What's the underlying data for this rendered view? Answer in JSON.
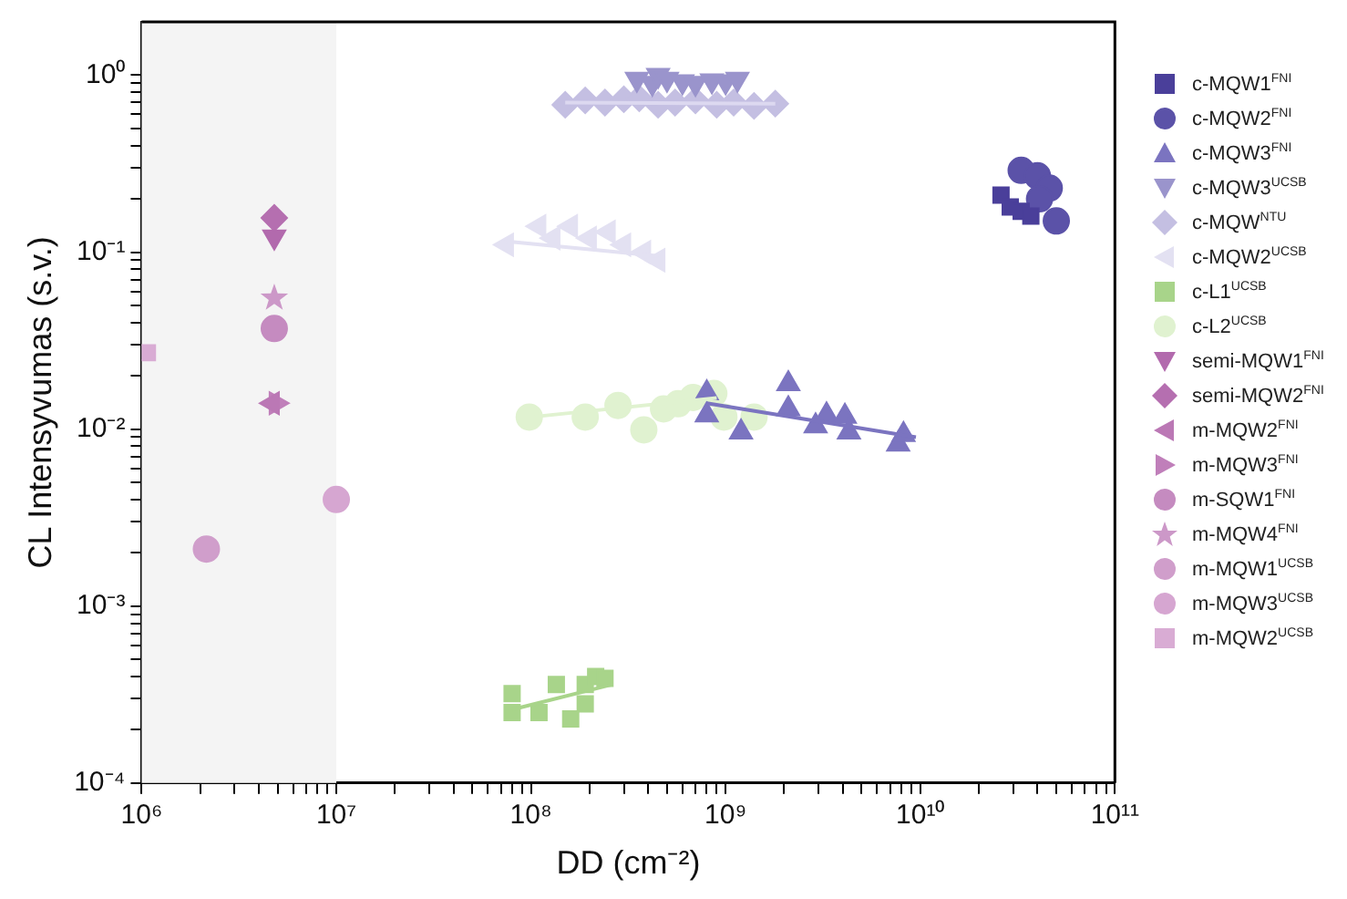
{
  "chart_data": {
    "type": "scatter",
    "xlabel": "DD (cm⁻²)",
    "ylabel": "CL Intensyvumas (s.v.)",
    "log": "xy",
    "grid": false,
    "legend": "right",
    "xlim": [
      1000000,
      100000000000
    ],
    "xticks": [
      {
        "value": 1000000,
        "label": "10⁶"
      },
      {
        "value": 2000000,
        "label": null
      },
      {
        "value": 3000000,
        "label": null
      },
      {
        "value": 4000000,
        "label": null
      },
      {
        "value": 5000000,
        "label": null
      },
      {
        "value": 6000000,
        "label": null
      },
      {
        "value": 7000000,
        "label": null
      },
      {
        "value": 8000000,
        "label": null
      },
      {
        "value": 9000000,
        "label": null
      },
      {
        "value": 10000000,
        "label": "10⁷"
      },
      {
        "value": 20000000,
        "label": null
      },
      {
        "value": 30000000,
        "label": null
      },
      {
        "value": 40000000,
        "label": null
      },
      {
        "value": 50000000,
        "label": null
      },
      {
        "value": 60000000,
        "label": null
      },
      {
        "value": 70000000,
        "label": null
      },
      {
        "value": 80000000,
        "label": null
      },
      {
        "value": 90000000,
        "label": null
      },
      {
        "value": 100000000,
        "label": "10⁸"
      },
      {
        "value": 200000000,
        "label": null
      },
      {
        "value": 300000000,
        "label": null
      },
      {
        "value": 400000000,
        "label": null
      },
      {
        "value": 500000000,
        "label": null
      },
      {
        "value": 600000000,
        "label": null
      },
      {
        "value": 700000000,
        "label": null
      },
      {
        "value": 800000000,
        "label": null
      },
      {
        "value": 900000000,
        "label": null
      },
      {
        "value": 1000000000,
        "label": "10⁹"
      },
      {
        "value": 2000000000,
        "label": null
      },
      {
        "value": 3000000000,
        "label": null
      },
      {
        "value": 4000000000,
        "label": null
      },
      {
        "value": 5000000000,
        "label": null
      },
      {
        "value": 6000000000,
        "label": null
      },
      {
        "value": 7000000000,
        "label": null
      },
      {
        "value": 8000000000,
        "label": null
      },
      {
        "value": 9000000000,
        "label": null
      },
      {
        "value": 10000000000,
        "label": "10¹⁰"
      },
      {
        "value": 20000000000,
        "label": null
      },
      {
        "value": 30000000000,
        "label": null
      },
      {
        "value": 40000000000,
        "label": null
      },
      {
        "value": 50000000000,
        "label": null
      },
      {
        "value": 60000000000,
        "label": null
      },
      {
        "value": 70000000000,
        "label": null
      },
      {
        "value": 80000000000,
        "label": null
      },
      {
        "value": 90000000000,
        "label": null
      },
      {
        "value": 100000000000,
        "label": "10¹¹"
      }
    ],
    "ylim": [
      0.0001,
      2
    ],
    "yticks": [
      {
        "value": 0.0001,
        "label": "10⁻⁴"
      },
      {
        "value": 0.0002,
        "label": null
      },
      {
        "value": 0.0003,
        "label": null
      },
      {
        "value": 0.0004,
        "label": null
      },
      {
        "value": 0.0005,
        "label": null
      },
      {
        "value": 0.0006,
        "label": null
      },
      {
        "value": 0.0007,
        "label": null
      },
      {
        "value": 0.0008,
        "label": null
      },
      {
        "value": 0.0009,
        "label": null
      },
      {
        "value": 0.001,
        "label": "10⁻³"
      },
      {
        "value": 0.002,
        "label": null
      },
      {
        "value": 0.003,
        "label": null
      },
      {
        "value": 0.004,
        "label": null
      },
      {
        "value": 0.005,
        "label": null
      },
      {
        "value": 0.006,
        "label": null
      },
      {
        "value": 0.007,
        "label": null
      },
      {
        "value": 0.008,
        "label": null
      },
      {
        "value": 0.009,
        "label": null
      },
      {
        "value": 0.01,
        "label": "10⁻²"
      },
      {
        "value": 0.02,
        "label": null
      },
      {
        "value": 0.03,
        "label": null
      },
      {
        "value": 0.04,
        "label": null
      },
      {
        "value": 0.05,
        "label": null
      },
      {
        "value": 0.06,
        "label": null
      },
      {
        "value": 0.07,
        "label": null
      },
      {
        "value": 0.08,
        "label": null
      },
      {
        "value": 0.09,
        "label": null
      },
      {
        "value": 0.1,
        "label": "10⁻¹"
      },
      {
        "value": 0.2,
        "label": null
      },
      {
        "value": 0.3,
        "label": null
      },
      {
        "value": 0.4,
        "label": null
      },
      {
        "value": 0.5,
        "label": null
      },
      {
        "value": 0.6,
        "label": null
      },
      {
        "value": 0.7,
        "label": null
      },
      {
        "value": 0.8,
        "label": null
      },
      {
        "value": 0.9,
        "label": null
      },
      {
        "value": 1,
        "label": "10⁰"
      }
    ],
    "bands": [
      {
        "axis": "x",
        "from": 1000000,
        "to": 10000000,
        "color": "#f4f4f4"
      }
    ],
    "series": [
      {
        "name": "c-MQW1$^{FNI}$",
        "color": "#4a3f9a",
        "marker": "square",
        "x": [
          26000000000,
          29000000000,
          33000000000,
          37000000000
        ],
        "values": [
          0.21,
          0.18,
          0.17,
          0.16
        ]
      },
      {
        "name": "c-MQW2$^{FNI}$",
        "color": "#5b52a8",
        "marker": "circle",
        "x": [
          33000000000,
          40000000000,
          46000000000,
          41000000000,
          50000000000
        ],
        "values": [
          0.29,
          0.27,
          0.23,
          0.2,
          0.15
        ]
      },
      {
        "name": "c-MQW3$^{FNI}$",
        "color": "#7b74c0",
        "marker": "triangle",
        "x": [
          800000000,
          800000000,
          1200000000,
          2100000000,
          2100000000,
          2900000000,
          3300000000,
          4100000000,
          4300000000,
          7700000000,
          8200000000
        ],
        "values": [
          0.016,
          0.012,
          0.0096,
          0.018,
          0.013,
          0.0104,
          0.012,
          0.0118,
          0.0096,
          0.0082,
          0.0093
        ]
      },
      {
        "name": "c-MQW3$^{UCSB}$",
        "color": "#9a94cc",
        "marker": "triangle-down",
        "x": [
          350000000,
          420000000,
          450000000,
          500000000,
          600000000,
          700000000,
          850000000,
          1000000000,
          1150000000
        ],
        "values": [
          0.95,
          0.9,
          1.0,
          0.95,
          0.92,
          0.9,
          0.93,
          0.92,
          0.95
        ]
      },
      {
        "name": "c-MQW$^{NTU}$",
        "color": "#c4bfe2",
        "marker": "diamond",
        "x": [
          150000000,
          190000000,
          240000000,
          300000000,
          360000000,
          450000000,
          550000000,
          700000000,
          900000000,
          1100000000,
          1400000000,
          1800000000
        ],
        "values": [
          0.68,
          0.72,
          0.7,
          0.73,
          0.74,
          0.68,
          0.7,
          0.72,
          0.68,
          0.7,
          0.67,
          0.69
        ]
      },
      {
        "name": "c-MQW2$^{UCSB}$",
        "color": "#e3e1f2",
        "marker": "triangle-left",
        "x": [
          75000000,
          110000000,
          130000000,
          160000000,
          200000000,
          250000000,
          300000000,
          380000000,
          450000000
        ],
        "values": [
          0.11,
          0.14,
          0.12,
          0.14,
          0.12,
          0.13,
          0.11,
          0.1,
          0.09
        ]
      },
      {
        "name": "c-L1$^{UCSB}$",
        "color": "#a8d48a",
        "marker": "square",
        "x": [
          80000000,
          80000000,
          110000000,
          135000000,
          160000000,
          190000000,
          190000000,
          215000000,
          240000000
        ],
        "values": [
          0.00032,
          0.00025,
          0.00025,
          0.00036,
          0.00023,
          0.00028,
          0.00036,
          0.0004,
          0.00039
        ]
      },
      {
        "name": "c-L2$^{UCSB}$",
        "color": "#e0f2d0",
        "marker": "circle",
        "x": [
          98000000,
          190000000,
          280000000,
          380000000,
          480000000,
          570000000,
          680000000,
          870000000,
          980000000,
          1400000000
        ],
        "values": [
          0.0117,
          0.0117,
          0.0136,
          0.0099,
          0.013,
          0.0139,
          0.0151,
          0.0159,
          0.0117,
          0.0117
        ]
      },
      {
        "name": "semi-MQW1$^{FNI}$",
        "color": "#b26aad",
        "marker": "triangle-down",
        "x": [
          4800000
        ],
        "values": [
          0.122
        ]
      },
      {
        "name": "semi-MQW2$^{FNI}$",
        "color": "#b56fb0",
        "marker": "diamond",
        "x": [
          4800000
        ],
        "values": [
          0.156
        ]
      },
      {
        "name": "m-MQW2$^{FNI}$",
        "color": "#bb78b5",
        "marker": "triangle-left",
        "x": [
          4700000
        ],
        "values": [
          0.014
        ]
      },
      {
        "name": "m-MQW3$^{FNI}$",
        "color": "#c07fba",
        "marker": "triangle-right",
        "x": [
          4900000
        ],
        "values": [
          0.014
        ]
      },
      {
        "name": "m-SQW1$^{FNI}$",
        "color": "#c58bc0",
        "marker": "circle",
        "x": [
          4800000
        ],
        "values": [
          0.037
        ]
      },
      {
        "name": "m-MQW4$^{FNI}$",
        "color": "#cc98c8",
        "marker": "star",
        "x": [
          4800000
        ],
        "values": [
          0.055
        ]
      },
      {
        "name": "m-MQW1$^{UCSB}$",
        "color": "#d09ecb",
        "marker": "circle",
        "x": [
          2150000
        ],
        "values": [
          0.0021
        ]
      },
      {
        "name": "m-MQW3$^{UCSB}$",
        "color": "#d6a6d1",
        "marker": "circle",
        "x": [
          10000000
        ],
        "values": [
          0.004
        ]
      },
      {
        "name": "m-MQW2$^{UCSB}$",
        "color": "#d9acd4",
        "marker": "square",
        "x": [
          1070000
        ],
        "values": [
          0.027
        ]
      },
      {
        "type": "line",
        "color": "#7b74c0",
        "marker": "none",
        "x": [
          800000000,
          9500000000
        ],
        "values": [
          0.014,
          0.009
        ]
      },
      {
        "type": "line",
        "color": "#dcd8f0",
        "marker": "none",
        "x": [
          150000000,
          1800000000
        ],
        "values": [
          0.7,
          0.69
        ]
      },
      {
        "type": "line",
        "color": "#e3e1f2",
        "marker": "none",
        "x": [
          75000000,
          450000000
        ],
        "values": [
          0.115,
          0.095
        ]
      },
      {
        "type": "line",
        "color": "#a8d48a",
        "marker": "none",
        "x": [
          80000000,
          260000000
        ],
        "values": [
          0.00026,
          0.00036
        ]
      },
      {
        "type": "line",
        "color": "#e0f2d0",
        "marker": "none",
        "x": [
          100000000,
          900000000
        ],
        "values": [
          0.0117,
          0.015
        ]
      }
    ]
  }
}
